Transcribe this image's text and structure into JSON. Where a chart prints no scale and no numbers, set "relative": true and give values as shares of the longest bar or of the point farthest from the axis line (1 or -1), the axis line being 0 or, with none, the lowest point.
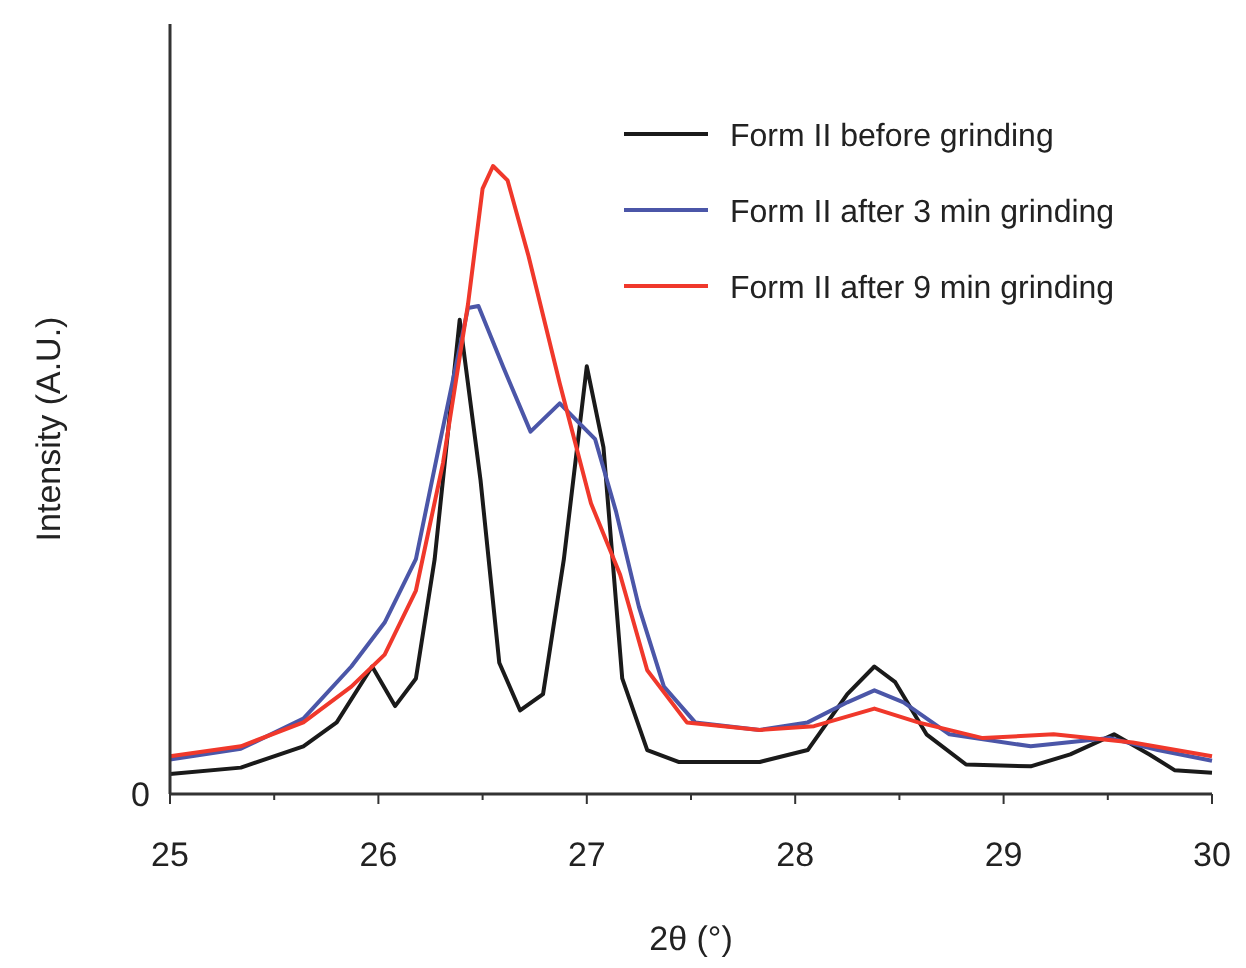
{
  "chart_data": {
    "type": "line",
    "relative": true,
    "xlabel": "2θ (°)",
    "ylabel": "Intensity (A.U.)",
    "annotations": [
      "0"
    ],
    "xlim": [
      25,
      30
    ],
    "xticks": [
      25,
      {
        "value": 25.5,
        "label": null
      },
      26,
      {
        "value": 26.5,
        "label": null
      },
      27,
      {
        "value": 27.5,
        "label": null
      },
      28,
      {
        "value": 28.5,
        "label": null
      },
      29,
      {
        "value": 29.5,
        "label": null
      },
      30
    ],
    "legend": "top right",
    "grid": false,
    "marker": "none",
    "line_style": "solid",
    "series": [
      {
        "name": "Form II before grinding",
        "color": "#1a1a1a",
        "x": [
          25,
          25.34,
          25.64,
          25.8,
          25.97,
          26.08,
          26.18,
          26.27,
          26.39,
          26.49,
          26.58,
          26.68,
          26.79,
          26.89,
          27,
          27.08,
          27.17,
          27.29,
          27.44,
          27.83,
          28.06,
          28.25,
          28.38,
          28.48,
          28.63,
          28.82,
          29.13,
          29.32,
          29.53,
          29.7,
          29.82,
          30
        ],
        "values": [
          0.032,
          0.042,
          0.076,
          0.114,
          0.203,
          0.14,
          0.184,
          0.374,
          0.755,
          0.5,
          0.209,
          0.133,
          0.159,
          0.374,
          0.681,
          0.552,
          0.184,
          0.07,
          0.051,
          0.051,
          0.07,
          0.159,
          0.203,
          0.178,
          0.095,
          0.047,
          0.044,
          0.063,
          0.095,
          0.063,
          0.038,
          0.034
        ]
      },
      {
        "name": "Form II after 3 min grinding",
        "color": "#4b56a8",
        "x": [
          25,
          25.34,
          25.64,
          25.87,
          26.03,
          26.18,
          26.29,
          26.43,
          26.48,
          26.6,
          26.73,
          26.87,
          27.04,
          27.14,
          27.25,
          27.37,
          27.52,
          27.83,
          28.06,
          28.25,
          28.38,
          28.52,
          28.74,
          29.13,
          29.51,
          29.74,
          30
        ],
        "values": [
          0.055,
          0.072,
          0.12,
          0.203,
          0.273,
          0.374,
          0.552,
          0.774,
          0.777,
          0.679,
          0.577,
          0.622,
          0.565,
          0.45,
          0.298,
          0.171,
          0.114,
          0.102,
          0.114,
          0.146,
          0.165,
          0.146,
          0.095,
          0.076,
          0.089,
          0.07,
          0.053
        ]
      },
      {
        "name": "Form II after 9 min grinding",
        "color": "#f0382b",
        "x": [
          25,
          25.34,
          25.64,
          25.87,
          26.03,
          26.18,
          26.31,
          26.43,
          26.5,
          26.55,
          26.62,
          26.72,
          26.87,
          27.02,
          27.16,
          27.29,
          27.48,
          27.83,
          28.09,
          28.38,
          28.59,
          28.9,
          29.24,
          29.62,
          30
        ],
        "values": [
          0.06,
          0.076,
          0.114,
          0.171,
          0.222,
          0.324,
          0.527,
          0.78,
          0.964,
          1,
          0.977,
          0.857,
          0.654,
          0.463,
          0.349,
          0.197,
          0.114,
          0.102,
          0.108,
          0.136,
          0.114,
          0.089,
          0.095,
          0.082,
          0.06
        ]
      }
    ]
  }
}
